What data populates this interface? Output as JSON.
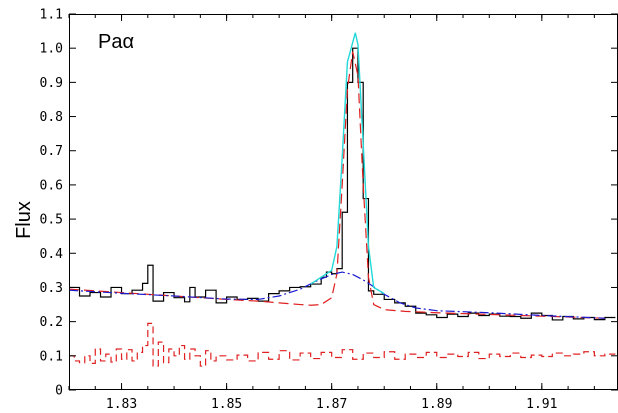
{
  "chart_data": {
    "type": "line",
    "title": "",
    "annotation": "Paα",
    "xlabel": "",
    "ylabel": "Flux",
    "xlim": [
      1.82,
      1.9245
    ],
    "ylim": [
      0,
      1.1
    ],
    "grid": false,
    "x_ticks": [
      1.83,
      1.85,
      1.87,
      1.89,
      1.91
    ],
    "x_tick_labels": [
      "1.83",
      "1.85",
      "1.87",
      "1.89",
      "1.91"
    ],
    "y_ticks": [
      0,
      0.1,
      0.2,
      0.3,
      0.4,
      0.5,
      0.6,
      0.7,
      0.8,
      0.9,
      1.0,
      1.1
    ],
    "y_tick_labels": [
      "0",
      "0.1",
      "0.2",
      "0.3",
      "0.4",
      "0.5",
      "0.6",
      "0.7",
      "0.8",
      "0.9",
      "1.0",
      "1.1"
    ],
    "series": [
      {
        "key": "observed",
        "style": "step",
        "color": "#000000",
        "dash": "",
        "points": [
          [
            1.82,
            0.3
          ],
          [
            1.822,
            0.275
          ],
          [
            1.824,
            0.285
          ],
          [
            1.826,
            0.272
          ],
          [
            1.828,
            0.3
          ],
          [
            1.83,
            0.282
          ],
          [
            1.832,
            0.292
          ],
          [
            1.834,
            0.312
          ],
          [
            1.835,
            0.365
          ],
          [
            1.836,
            0.26
          ],
          [
            1.838,
            0.285
          ],
          [
            1.84,
            0.27
          ],
          [
            1.842,
            0.258
          ],
          [
            1.843,
            0.3
          ],
          [
            1.844,
            0.272
          ],
          [
            1.846,
            0.292
          ],
          [
            1.848,
            0.255
          ],
          [
            1.85,
            0.272
          ],
          [
            1.852,
            0.265
          ],
          [
            1.854,
            0.268
          ],
          [
            1.856,
            0.26
          ],
          [
            1.858,
            0.282
          ],
          [
            1.86,
            0.29
          ],
          [
            1.862,
            0.3
          ],
          [
            1.864,
            0.302
          ],
          [
            1.866,
            0.31
          ],
          [
            1.868,
            0.33
          ],
          [
            1.869,
            0.345
          ],
          [
            1.87,
            0.34
          ],
          [
            1.871,
            0.355
          ],
          [
            1.872,
            0.52
          ],
          [
            1.873,
            0.9
          ],
          [
            1.874,
            1.0
          ],
          [
            1.875,
            0.9
          ],
          [
            1.876,
            0.56
          ],
          [
            1.877,
            0.29
          ],
          [
            1.878,
            0.28
          ],
          [
            1.88,
            0.265
          ],
          [
            1.882,
            0.255
          ],
          [
            1.884,
            0.245
          ],
          [
            1.886,
            0.225
          ],
          [
            1.888,
            0.22
          ],
          [
            1.89,
            0.212
          ],
          [
            1.892,
            0.222
          ],
          [
            1.894,
            0.215
          ],
          [
            1.896,
            0.225
          ],
          [
            1.898,
            0.218
          ],
          [
            1.9,
            0.222
          ],
          [
            1.902,
            0.216
          ],
          [
            1.904,
            0.215
          ],
          [
            1.906,
            0.21
          ],
          [
            1.908,
            0.225
          ],
          [
            1.91,
            0.218
          ],
          [
            1.912,
            0.205
          ],
          [
            1.914,
            0.215
          ],
          [
            1.916,
            0.208
          ],
          [
            1.918,
            0.212
          ],
          [
            1.92,
            0.206
          ],
          [
            1.922,
            0.212
          ]
        ]
      },
      {
        "key": "residual",
        "style": "step",
        "color": "#e02020",
        "dash": "7,4",
        "points": [
          [
            1.82,
            0.1
          ],
          [
            1.821,
            0.085
          ],
          [
            1.822,
            0.08
          ],
          [
            1.823,
            0.1
          ],
          [
            1.824,
            0.078
          ],
          [
            1.825,
            0.12
          ],
          [
            1.826,
            0.085
          ],
          [
            1.827,
            0.105
          ],
          [
            1.828,
            0.082
          ],
          [
            1.829,
            0.12
          ],
          [
            1.83,
            0.09
          ],
          [
            1.831,
            0.118
          ],
          [
            1.832,
            0.085
          ],
          [
            1.833,
            0.11
          ],
          [
            1.834,
            0.13
          ],
          [
            1.835,
            0.195
          ],
          [
            1.836,
            0.07
          ],
          [
            1.837,
            0.14
          ],
          [
            1.838,
            0.08
          ],
          [
            1.839,
            0.12
          ],
          [
            1.84,
            0.1
          ],
          [
            1.841,
            0.13
          ],
          [
            1.842,
            0.09
          ],
          [
            1.843,
            0.12
          ],
          [
            1.844,
            0.1
          ],
          [
            1.845,
            0.07
          ],
          [
            1.846,
            0.115
          ],
          [
            1.847,
            0.085
          ],
          [
            1.848,
            0.1
          ],
          [
            1.85,
            0.088
          ],
          [
            1.852,
            0.102
          ],
          [
            1.854,
            0.085
          ],
          [
            1.856,
            0.11
          ],
          [
            1.858,
            0.09
          ],
          [
            1.86,
            0.115
          ],
          [
            1.862,
            0.088
          ],
          [
            1.864,
            0.108
          ],
          [
            1.866,
            0.092
          ],
          [
            1.868,
            0.11
          ],
          [
            1.87,
            0.095
          ],
          [
            1.872,
            0.118
          ],
          [
            1.874,
            0.09
          ],
          [
            1.876,
            0.108
          ],
          [
            1.878,
            0.095
          ],
          [
            1.88,
            0.112
          ],
          [
            1.882,
            0.09
          ],
          [
            1.884,
            0.105
          ],
          [
            1.886,
            0.095
          ],
          [
            1.888,
            0.11
          ],
          [
            1.89,
            0.095
          ],
          [
            1.892,
            0.105
          ],
          [
            1.894,
            0.098
          ],
          [
            1.896,
            0.11
          ],
          [
            1.898,
            0.092
          ],
          [
            1.9,
            0.105
          ],
          [
            1.902,
            0.098
          ],
          [
            1.904,
            0.108
          ],
          [
            1.906,
            0.095
          ],
          [
            1.908,
            0.102
          ],
          [
            1.91,
            0.098
          ],
          [
            1.912,
            0.108
          ],
          [
            1.914,
            0.1
          ],
          [
            1.916,
            0.105
          ],
          [
            1.918,
            0.112
          ],
          [
            1.92,
            0.1
          ],
          [
            1.922,
            0.105
          ]
        ]
      },
      {
        "key": "narrow_component",
        "style": "line",
        "color": "#e02020",
        "dash": "10,5",
        "points": [
          [
            1.82,
            0.295
          ],
          [
            1.83,
            0.285
          ],
          [
            1.84,
            0.275
          ],
          [
            1.85,
            0.265
          ],
          [
            1.856,
            0.26
          ],
          [
            1.86,
            0.255
          ],
          [
            1.864,
            0.25
          ],
          [
            1.866,
            0.248
          ],
          [
            1.868,
            0.25
          ],
          [
            1.87,
            0.27
          ],
          [
            1.871,
            0.34
          ],
          [
            1.872,
            0.6
          ],
          [
            1.873,
            0.88
          ],
          [
            1.874,
            0.99
          ],
          [
            1.875,
            0.92
          ],
          [
            1.876,
            0.6
          ],
          [
            1.877,
            0.33
          ],
          [
            1.878,
            0.25
          ],
          [
            1.88,
            0.235
          ],
          [
            1.884,
            0.23
          ],
          [
            1.89,
            0.226
          ],
          [
            1.9,
            0.221
          ],
          [
            1.91,
            0.216
          ],
          [
            1.922,
            0.21
          ]
        ]
      },
      {
        "key": "broad_component",
        "style": "line",
        "color": "#1a1ad0",
        "dash": "9,3,2,3",
        "points": [
          [
            1.82,
            0.292
          ],
          [
            1.83,
            0.283
          ],
          [
            1.84,
            0.275
          ],
          [
            1.85,
            0.266
          ],
          [
            1.856,
            0.265
          ],
          [
            1.86,
            0.275
          ],
          [
            1.864,
            0.295
          ],
          [
            1.867,
            0.318
          ],
          [
            1.87,
            0.338
          ],
          [
            1.872,
            0.345
          ],
          [
            1.874,
            0.338
          ],
          [
            1.876,
            0.322
          ],
          [
            1.878,
            0.302
          ],
          [
            1.88,
            0.28
          ],
          [
            1.883,
            0.255
          ],
          [
            1.886,
            0.24
          ],
          [
            1.89,
            0.232
          ],
          [
            1.9,
            0.226
          ],
          [
            1.91,
            0.218
          ],
          [
            1.922,
            0.21
          ]
        ]
      },
      {
        "key": "total_fit",
        "style": "line",
        "color": "#22d8d8",
        "dash": "",
        "points": [
          [
            1.866,
            0.31
          ],
          [
            1.868,
            0.33
          ],
          [
            1.87,
            0.35
          ],
          [
            1.871,
            0.42
          ],
          [
            1.872,
            0.68
          ],
          [
            1.873,
            0.96
          ],
          [
            1.8745,
            1.045
          ],
          [
            1.875,
            1.01
          ],
          [
            1.876,
            0.72
          ],
          [
            1.877,
            0.42
          ],
          [
            1.878,
            0.3
          ],
          [
            1.88,
            0.282
          ]
        ]
      }
    ]
  }
}
